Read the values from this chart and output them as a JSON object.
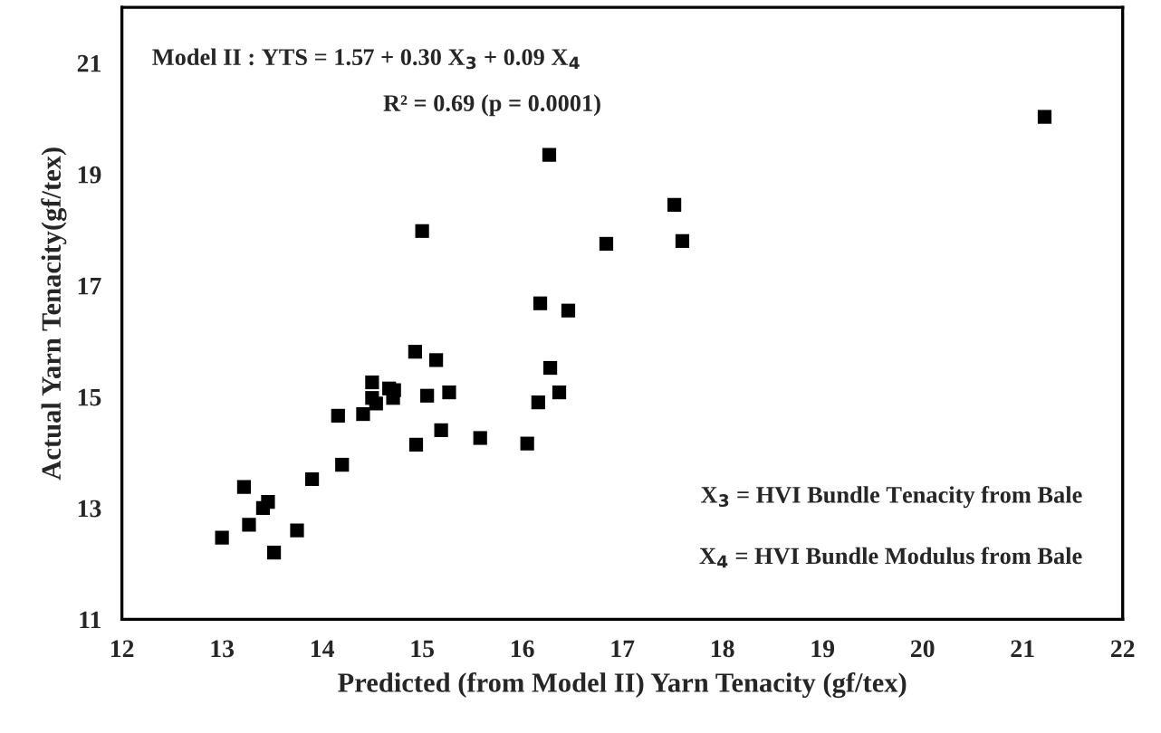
{
  "chart_data": {
    "type": "scatter",
    "xlabel": "Predicted (from Model II) Yarn Tenacity (gf/tex)",
    "ylabel": "Actual Yarn Tenacity(gf/tex)",
    "annotations": [
      "Model II : YTS = 1.57 + 0.30 X$_{3}$ + 0.09 X$_{4}$",
      "R² = 0.69 (p = 0.0001)",
      "X$_{3}$ = HVI Bundle Tenacity from Bale",
      "X$_{4}$ = HVI Bundle Modulus from Bale"
    ],
    "series": [
      {
        "color": "#000000",
        "x": [
          13.0,
          13.22,
          13.27,
          13.41,
          13.46,
          13.52,
          13.75,
          13.9,
          14.2,
          14.16,
          14.41,
          14.5,
          14.5,
          14.54,
          14.67,
          14.72,
          14.71,
          14.93,
          14.94,
          15.05,
          15.14,
          15.27,
          15.19,
          15.58,
          16.05,
          16.16,
          16.28,
          16.37,
          16.27,
          15.0,
          16.18,
          16.46,
          17.52,
          17.6,
          16.84,
          21.22
        ],
        "values": [
          12.47,
          13.38,
          12.7,
          13.0,
          13.11,
          12.2,
          12.6,
          13.52,
          13.78,
          14.66,
          14.69,
          15.26,
          14.98,
          14.88,
          15.15,
          15.12,
          14.98,
          15.81,
          14.14,
          15.02,
          15.66,
          15.08,
          14.4,
          14.26,
          14.16,
          14.9,
          15.52,
          15.08,
          19.35,
          17.98,
          16.68,
          16.55,
          18.45,
          17.8,
          17.75,
          20.03
        ]
      }
    ],
    "xlim": [
      12,
      22
    ],
    "xticks": [
      12,
      13,
      14,
      15,
      16,
      17,
      18,
      19,
      20,
      21,
      22
    ],
    "ylim": [
      11,
      22
    ],
    "yticks": [
      11,
      13,
      15,
      17,
      19,
      21
    ],
    "marker": "square",
    "grid": false,
    "legend": false
  }
}
